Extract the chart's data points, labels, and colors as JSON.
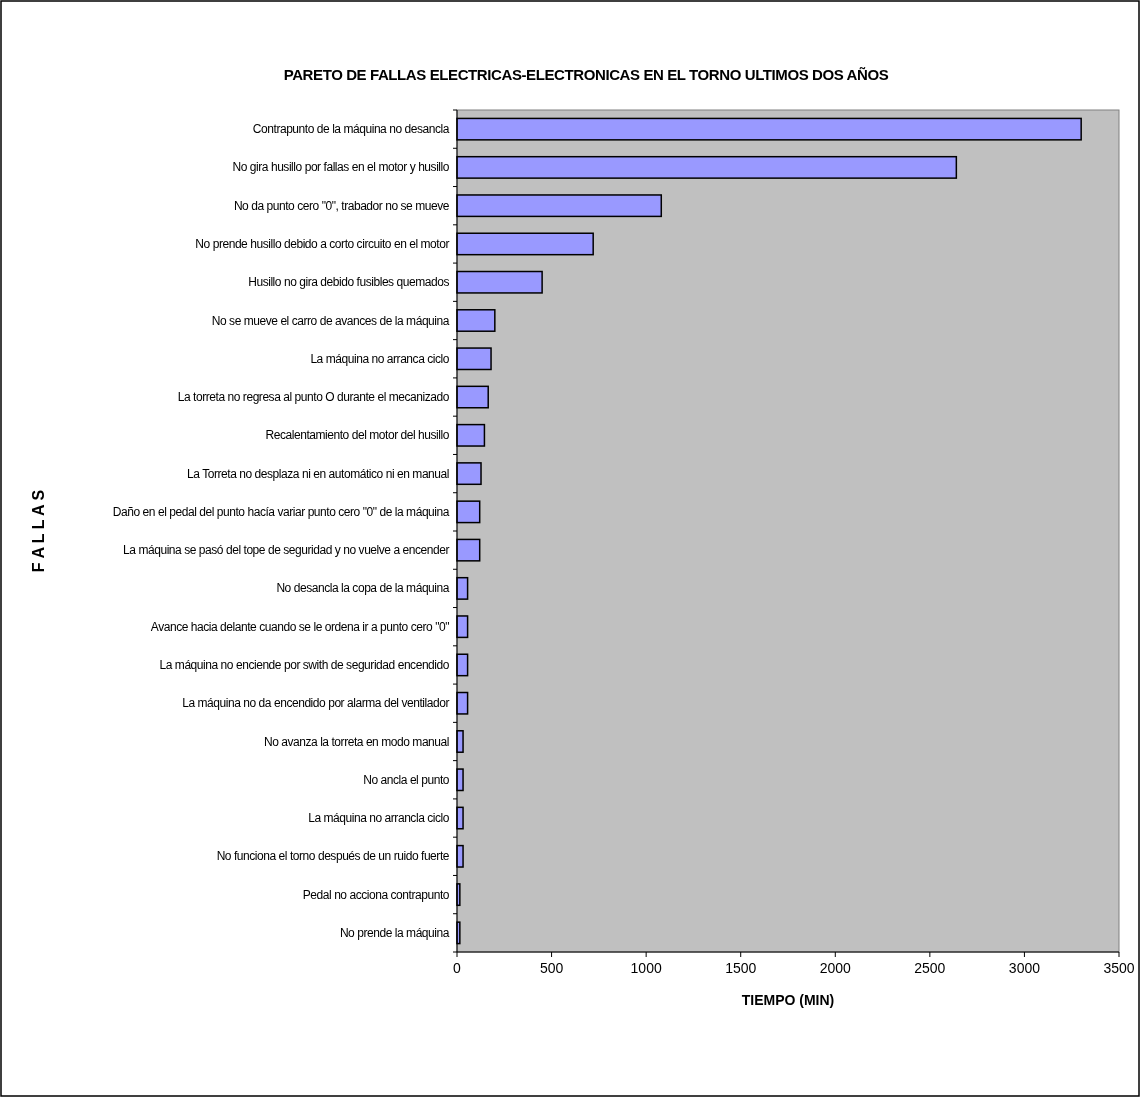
{
  "chart_data": {
    "type": "bar",
    "orientation": "horizontal",
    "title": "PARETO DE FALLAS ELECTRICAS-ELECTRONICAS EN EL TORNO ULTIMOS DOS AÑOS",
    "xlabel": "TIEMPO (MIN)",
    "ylabel": "F A L L A S",
    "categories": [
      "Contrapunto de la máquina no desancla",
      "No gira husillo por fallas en el motor y husillo",
      "No da punto cero \"0\", trabador no se mueve",
      "No prende husillo debido a corto circuito en el motor",
      "Husillo no gira debido  fusibles quemados",
      "No se mueve el carro de avances de la máquina",
      "La máquina no arranca ciclo",
      "La torreta no regresa al punto O durante el mecanizado",
      "Recalentamiento del motor del husillo",
      "La Torreta no desplaza ni en automático ni en manual",
      "Daño en el pedal del punto hacía variar punto cero \"0\" de la máquina",
      "La máquina se pasó del tope de seguridad y no vuelve a encender",
      "No desancla la copa de la máquina",
      "Avance hacia delante cuando se le ordena ir a punto cero \"0\"",
      "La máquina no enciende por swith de seguridad encendido",
      "La máquina no da encendido por alarma del ventilador",
      "No avanza la torreta en modo manual",
      "No ancla el punto",
      "La máquina no arrancla ciclo",
      "No funciona el torno después de un ruido fuerte",
      "Pedal no acciona contrapunto",
      "No prende la máquina"
    ],
    "values": [
      3300,
      2640,
      1080,
      720,
      450,
      200,
      180,
      165,
      145,
      127,
      120,
      120,
      56,
      56,
      56,
      56,
      32,
      32,
      32,
      32,
      15,
      15
    ],
    "color": "#9999ff",
    "xlim": [
      0,
      3500
    ],
    "xticks": [
      0,
      500,
      1000,
      1500,
      2000,
      2500,
      3000,
      3500
    ],
    "grid": false
  }
}
